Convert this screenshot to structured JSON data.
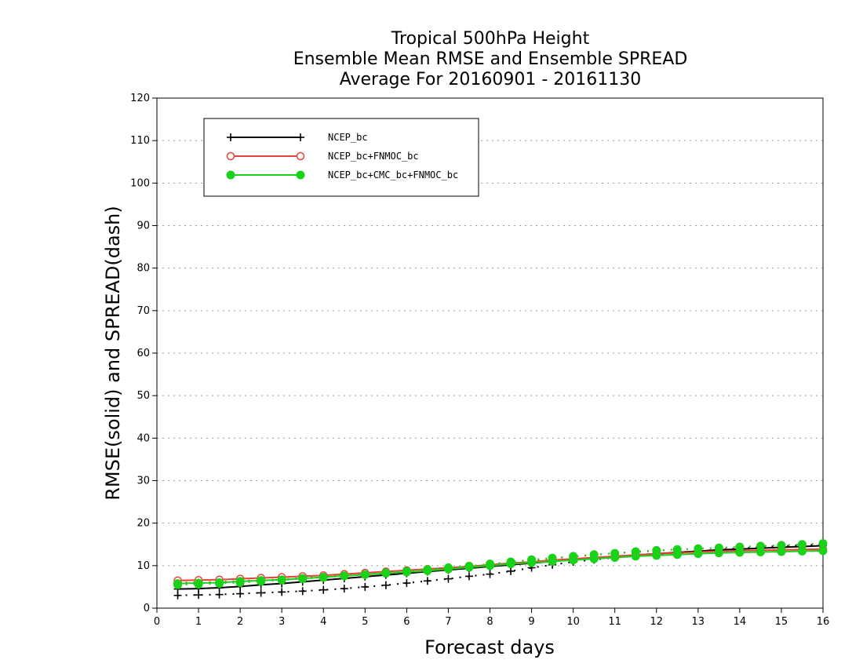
{
  "chart_data": {
    "type": "line",
    "title": [
      "Tropical 500hPa Height",
      "Ensemble Mean RMSE and Ensemble SPREAD",
      "Average For 20160901 - 20161130"
    ],
    "xlabel": "Forecast days",
    "ylabel": "RMSE(solid) and SPREAD(dash)",
    "xlim": [
      0,
      16
    ],
    "ylim": [
      0,
      120
    ],
    "xticks": [
      0,
      1,
      2,
      3,
      4,
      5,
      6,
      7,
      8,
      9,
      10,
      11,
      12,
      13,
      14,
      15,
      16
    ],
    "yticks": [
      0,
      10,
      20,
      30,
      40,
      50,
      60,
      70,
      80,
      90,
      100,
      110,
      120
    ],
    "grid": "horizontal dotted",
    "legend_position": "top-left",
    "x": [
      0.5,
      1,
      1.5,
      2,
      2.5,
      3,
      3.5,
      4,
      4.5,
      5,
      5.5,
      6,
      6.5,
      7,
      7.5,
      8,
      8.5,
      9,
      9.5,
      10,
      10.5,
      11,
      11.5,
      12,
      12.5,
      13,
      13.5,
      14,
      14.5,
      15,
      15.5,
      16
    ],
    "series": [
      {
        "name": "NCEP_bc",
        "color": "#000000",
        "marker": "plus",
        "rmse": [
          4.5,
          4.6,
          4.8,
          5.1,
          5.5,
          5.8,
          6.2,
          6.6,
          7.0,
          7.4,
          7.8,
          8.2,
          8.6,
          9.0,
          9.4,
          9.8,
          10.2,
          10.6,
          11.0,
          11.4,
          11.8,
          12.1,
          12.5,
          12.8,
          13.1,
          13.4,
          13.7,
          13.9,
          14.1,
          14.3,
          14.5,
          14.7
        ],
        "spread": [
          3.0,
          3.1,
          3.2,
          3.4,
          3.6,
          3.8,
          4.0,
          4.3,
          4.6,
          5.0,
          5.4,
          5.9,
          6.4,
          6.9,
          7.5,
          8.0,
          8.7,
          9.5,
          10.2,
          10.9,
          11.4,
          11.9,
          12.3,
          12.7,
          13.1,
          13.4,
          13.8,
          14.1,
          14.4,
          14.6,
          14.8,
          15.0
        ]
      },
      {
        "name": "NCEP_bc+FNMOC_bc",
        "color": "#e8413c",
        "marker": "open-circle",
        "rmse": [
          6.5,
          6.6,
          6.7,
          6.9,
          7.1,
          7.3,
          7.5,
          7.7,
          8.0,
          8.3,
          8.6,
          8.9,
          9.2,
          9.5,
          9.8,
          10.2,
          10.6,
          10.9,
          11.3,
          11.6,
          11.9,
          12.2,
          12.5,
          12.8,
          13.0,
          13.2,
          13.4,
          13.5,
          13.6,
          13.7,
          13.8,
          13.9
        ],
        "spread": [
          6.0,
          6.1,
          6.2,
          6.4,
          6.6,
          6.8,
          7.1,
          7.4,
          7.7,
          8.0,
          8.3,
          8.6,
          9.0,
          9.4,
          9.8,
          10.2,
          10.7,
          11.2,
          11.7,
          12.1,
          12.5,
          12.9,
          13.2,
          13.5,
          13.8,
          14.0,
          14.2,
          14.4,
          14.6,
          14.8,
          15.0,
          15.2
        ]
      },
      {
        "name": "NCEP_bc+CMC_bc+FNMOC_bc",
        "color": "#19d219",
        "marker": "filled-circle",
        "rmse": [
          5.8,
          5.9,
          6.0,
          6.3,
          6.5,
          6.7,
          7.0,
          7.3,
          7.6,
          7.9,
          8.2,
          8.5,
          8.8,
          9.2,
          9.6,
          10.0,
          10.4,
          10.7,
          11.0,
          11.3,
          11.6,
          11.9,
          12.2,
          12.4,
          12.6,
          12.8,
          13.0,
          13.1,
          13.2,
          13.3,
          13.4,
          13.5
        ],
        "spread": [
          5.5,
          5.6,
          5.8,
          6.0,
          6.3,
          6.6,
          6.9,
          7.2,
          7.6,
          7.9,
          8.3,
          8.7,
          9.1,
          9.5,
          9.9,
          10.4,
          10.9,
          11.4,
          11.8,
          12.2,
          12.6,
          12.9,
          13.3,
          13.6,
          13.8,
          14.0,
          14.2,
          14.4,
          14.6,
          14.8,
          15.0,
          15.2
        ]
      }
    ]
  }
}
